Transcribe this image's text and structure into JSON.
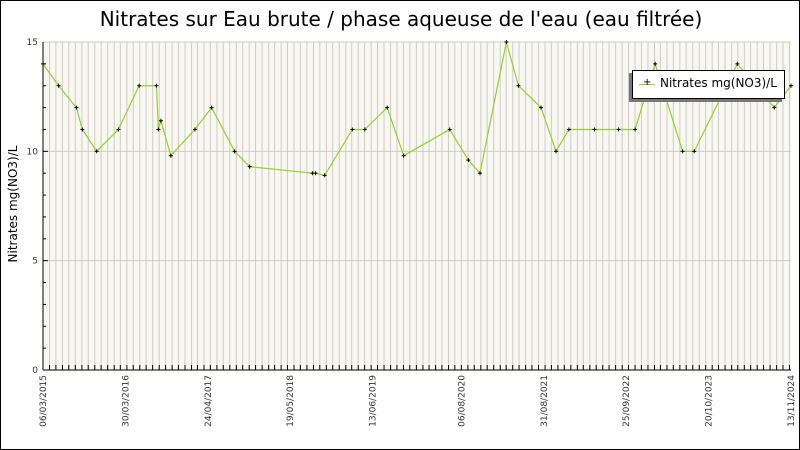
{
  "chart_data": {
    "type": "line",
    "title": "Nitrates sur Eau brute / phase aqueuse de l'eau (eau filtrée)",
    "xlabel": "",
    "ylabel": "Nitrates mg(NO3)/L",
    "ylim": [
      0,
      15
    ],
    "xlim": [
      "2015-03-06",
      "2024-11-13"
    ],
    "y_ticks": [
      "0",
      "5",
      "10",
      "15"
    ],
    "x_tick_labels": [
      "06/03/2015",
      "30/03/2016",
      "24/04/2017",
      "19/05/2018",
      "13/06/2019",
      "06/08/2020",
      "31/08/2021",
      "25/09/2022",
      "20/10/2023",
      "13/11/2024"
    ],
    "x_ticks": [
      "2015-03-06",
      "2016-03-30",
      "2017-04-24",
      "2018-05-19",
      "2019-06-13",
      "2020-08-06",
      "2021-08-31",
      "2022-09-25",
      "2023-10-20",
      "2024-11-13"
    ],
    "grid": true,
    "legend_position": "top-right",
    "colors": {
      "line": "#99cc33",
      "marker": "#000000",
      "plot_bg": "#f8f8f0",
      "grid": "#cccccc"
    },
    "series": [
      {
        "name": "Nitrates mg(NO3)/L",
        "x": [
          "2015-03-06",
          "2015-05-19",
          "2015-08-11",
          "2015-09-08",
          "2015-11-15",
          "2016-02-26",
          "2016-06-03",
          "2016-08-24",
          "2016-09-02",
          "2016-09-14",
          "2016-10-31",
          "2017-02-22",
          "2017-05-12",
          "2017-08-29",
          "2017-11-08",
          "2018-09-01",
          "2018-09-16",
          "2018-10-29",
          "2019-03-09",
          "2019-05-07",
          "2019-08-21",
          "2019-11-07",
          "2020-06-12",
          "2020-09-08",
          "2020-11-02",
          "2021-03-07",
          "2021-05-03",
          "2021-08-18",
          "2021-10-28",
          "2021-12-28",
          "2022-04-28",
          "2022-08-20",
          "2022-11-06",
          "2023-02-09",
          "2023-06-19",
          "2023-08-13",
          "2024-03-04",
          "2024-08-26",
          "2024-11-13"
        ],
        "y": [
          14,
          13,
          12,
          11,
          10,
          11,
          13,
          13,
          11,
          11.4,
          9.8,
          11,
          12,
          10,
          9.3,
          9,
          9,
          8.9,
          11,
          11,
          12,
          9.8,
          11,
          9.6,
          9,
          15,
          13,
          12,
          10,
          11,
          11,
          11,
          11,
          14,
          10,
          10,
          14,
          12,
          13
        ]
      }
    ]
  }
}
